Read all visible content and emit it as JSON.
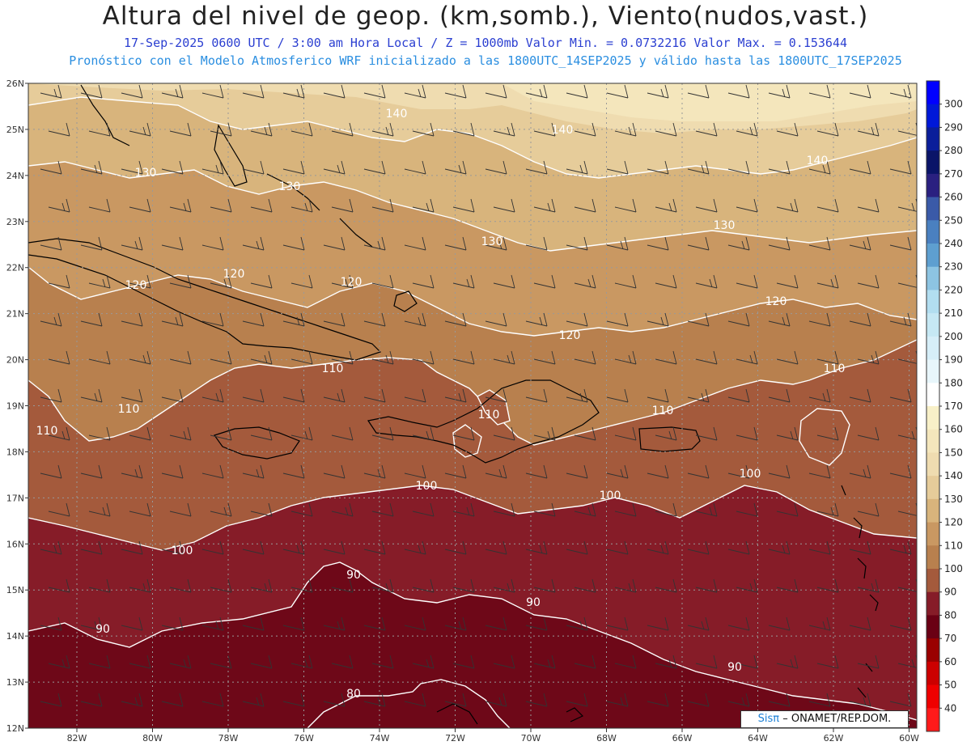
{
  "header": {
    "title": "Altura del nivel de geop. (km,somb.), Viento(nudos,vast.)",
    "line1": "17-Sep-2025  0600 UTC / 3:00 am Hora Local / Z = 1000mb  Valor Min. = 0.0732216  Valor Max. = 0.153644",
    "line2": "Pronóstico con el Modelo Atmosferico WRF inicializado a las 1800UTC_14SEP2025 y válido hasta las  1800UTC_17SEP2025"
  },
  "map": {
    "lat_labels": [
      "26N",
      "25N",
      "24N",
      "23N",
      "22N",
      "21N",
      "20N",
      "19N",
      "18N",
      "17N",
      "16N",
      "15N",
      "14N",
      "13N",
      "12N"
    ],
    "lon_labels": [
      "82W",
      "80W",
      "78W",
      "76W",
      "74W",
      "72W",
      "70W",
      "68W",
      "66W",
      "64W",
      "62W",
      "60W"
    ],
    "contour_labels": [
      {
        "text": "140"
      },
      {
        "text": "140"
      },
      {
        "text": "140"
      },
      {
        "text": "130"
      },
      {
        "text": "130"
      },
      {
        "text": "130"
      },
      {
        "text": "130"
      },
      {
        "text": "120"
      },
      {
        "text": "120"
      },
      {
        "text": "120"
      },
      {
        "text": "120"
      },
      {
        "text": "120"
      },
      {
        "text": "110"
      },
      {
        "text": "110"
      },
      {
        "text": "110"
      },
      {
        "text": "110"
      },
      {
        "text": "110"
      },
      {
        "text": "110"
      },
      {
        "text": "100"
      },
      {
        "text": "100"
      },
      {
        "text": "100"
      },
      {
        "text": "100"
      },
      {
        "text": "90"
      },
      {
        "text": "90"
      },
      {
        "text": "90"
      },
      {
        "text": "90"
      },
      {
        "text": "80"
      }
    ]
  },
  "colorbar": {
    "labels": [
      "300",
      "290",
      "280",
      "270",
      "260",
      "250",
      "240",
      "230",
      "220",
      "210",
      "200",
      "190",
      "180",
      "170",
      "160",
      "150",
      "140",
      "130",
      "120",
      "110",
      "100",
      "90",
      "80",
      "70",
      "60",
      "50",
      "40"
    ],
    "colors": [
      "#0000ff",
      "#0018d8",
      "#0a1e9a",
      "#0a1468",
      "#2a2080",
      "#3a5aa8",
      "#4a80c0",
      "#5e9fd0",
      "#8dc4e2",
      "#b2def0",
      "#c6e8f4",
      "#d6eef8",
      "#e8f6fb",
      "#ffffff",
      "#f8f0c8",
      "#f4e6bc",
      "#efdcb0",
      "#e6cc9a",
      "#d8b47c",
      "#c99862",
      "#b8804e",
      "#a45a3c",
      "#861c28",
      "#6a0014",
      "#9a0000",
      "#cc0000",
      "#ee0000",
      "#ff1a1a"
    ]
  },
  "credit": {
    "brand": "Sisπ",
    "text": "–  ONAMET/REP.DOM."
  }
}
